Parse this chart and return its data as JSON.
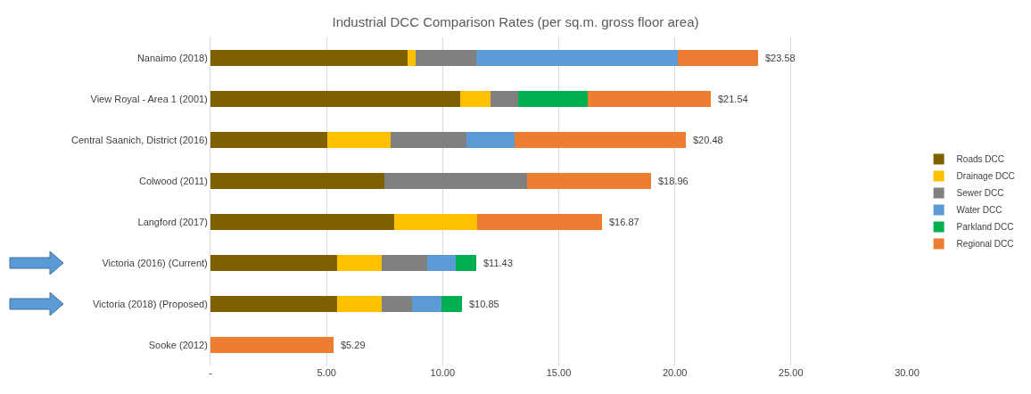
{
  "chart_data": {
    "type": "bar",
    "orientation": "horizontal",
    "stacked": true,
    "title": "Industrial DCC Comparison Rates (per sq.m. gross floor area)",
    "categories": [
      "Nanaimo (2018)",
      "View Royal - Area 1 (2001)",
      "Central Saanich, District (2016)",
      "Colwood (2011)",
      "Langford (2017)",
      "Victoria (2016) (Current)",
      "Victoria (2018) (Proposed)",
      "Sooke (2012)"
    ],
    "series": [
      {
        "name": "Roads DCC",
        "color": "#7f6000",
        "values": [
          8.47,
          10.75,
          5.04,
          7.5,
          7.91,
          5.45,
          5.45,
          null
        ]
      },
      {
        "name": "Drainage DCC",
        "color": "#ffc000",
        "values": [
          0.37,
          1.3,
          2.72,
          null,
          3.58,
          1.94,
          1.94,
          null
        ]
      },
      {
        "name": "Sewer DCC",
        "color": "#808080",
        "values": [
          2.62,
          1.2,
          3.25,
          6.12,
          null,
          1.94,
          1.3,
          null
        ]
      },
      {
        "name": "Water DCC",
        "color": "#5b9bd5",
        "values": [
          8.65,
          null,
          2.09,
          null,
          null,
          1.23,
          1.24,
          null
        ]
      },
      {
        "name": "Parkland DCC",
        "color": "#00b050",
        "values": [
          null,
          2.98,
          null,
          null,
          null,
          0.87,
          0.92,
          null
        ]
      },
      {
        "name": "Regional DCC",
        "color": "#ed7d31",
        "values": [
          3.47,
          5.31,
          7.38,
          5.34,
          5.38,
          null,
          null,
          5.29
        ]
      }
    ],
    "totals": [
      "$23.58",
      "$21.54",
      "$20.48",
      "$18.96",
      "$16.87",
      "$11.43",
      "$10.85",
      "$5.29"
    ],
    "xlim": [
      0,
      30
    ],
    "xticks": [
      {
        "value": 0,
        "label": "-"
      },
      {
        "value": 5,
        "label": "5.00"
      },
      {
        "value": 10,
        "label": "10.00"
      },
      {
        "value": 15,
        "label": "15.00"
      },
      {
        "value": 20,
        "label": "20.00"
      },
      {
        "value": 25,
        "label": "25.00"
      },
      {
        "value": 30,
        "label": "30.00"
      }
    ],
    "grid": "x",
    "legend": "right"
  }
}
